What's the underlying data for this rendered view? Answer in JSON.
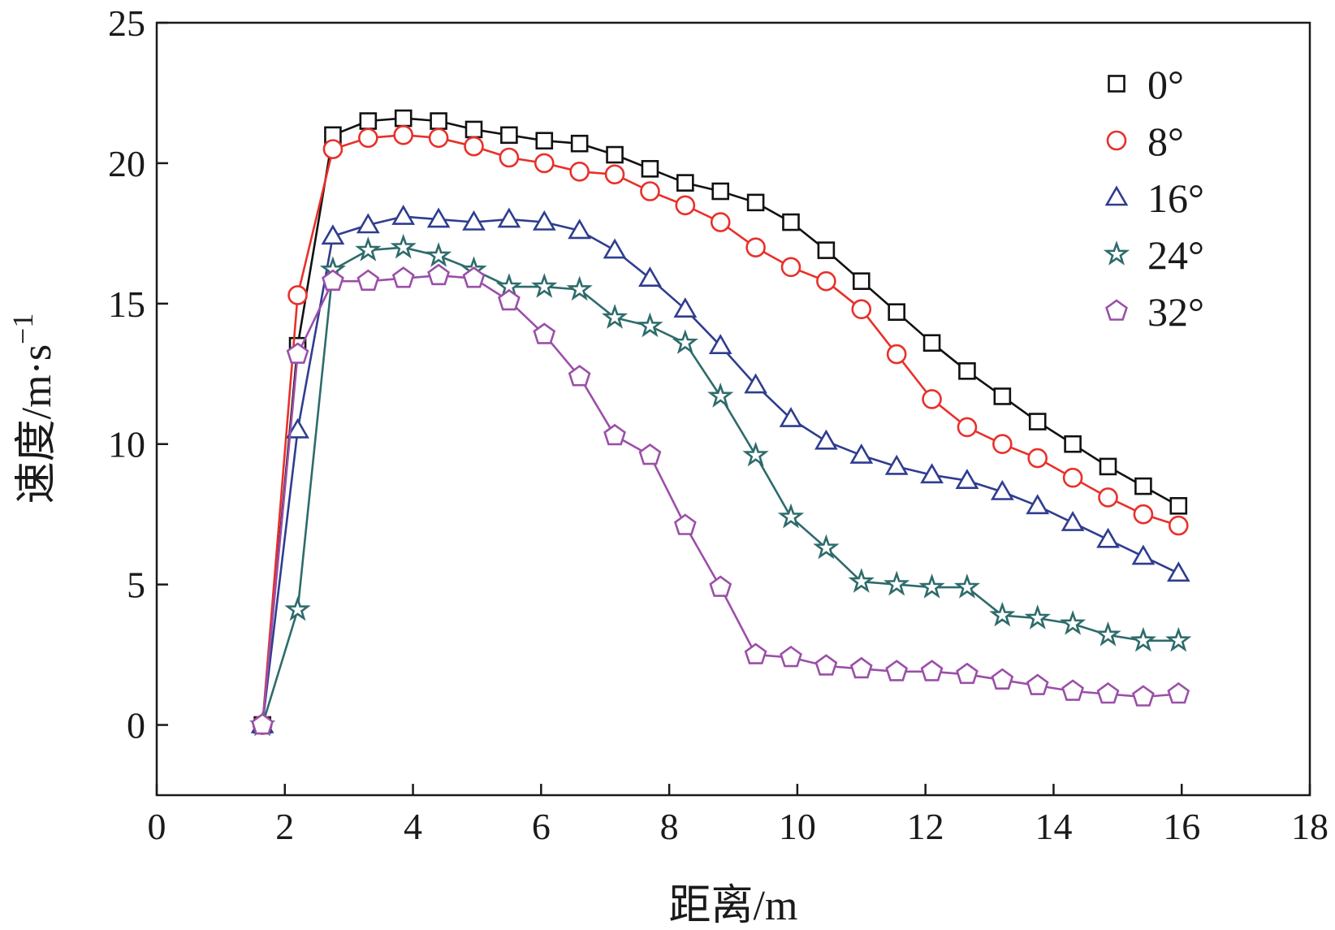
{
  "chart_data": {
    "type": "line",
    "xlabel": "距离/m",
    "ylabel": "速度/m·s",
    "ylabel_sup": "−1",
    "xlim": [
      0,
      18
    ],
    "ylim": [
      -2.5,
      25
    ],
    "xticks": [
      "0",
      "2",
      "4",
      "6",
      "8",
      "10",
      "12",
      "14",
      "16",
      "18"
    ],
    "yticks": [
      "0",
      "5",
      "10",
      "15",
      "20",
      "25"
    ],
    "grid": false,
    "legend_position": "top-right",
    "x": [
      1.65,
      2.2,
      2.75,
      3.3,
      3.85,
      4.4,
      4.95,
      5.5,
      6.05,
      6.6,
      7.15,
      7.7,
      8.25,
      8.8,
      9.35,
      9.9,
      10.45,
      11.0,
      11.55,
      12.1,
      12.65,
      13.2,
      13.75,
      14.3,
      14.85,
      15.4,
      15.95
    ],
    "series": [
      {
        "name": "0°",
        "color": "#111111",
        "marker": "square",
        "values": [
          0,
          13.5,
          21.0,
          21.5,
          21.6,
          21.5,
          21.2,
          21.0,
          20.8,
          20.7,
          20.3,
          19.8,
          19.3,
          19.0,
          18.6,
          17.9,
          16.9,
          15.8,
          14.7,
          13.6,
          12.6,
          11.7,
          10.8,
          10.0,
          9.2,
          8.5,
          7.8
        ]
      },
      {
        "name": "8°",
        "color": "#e8302a",
        "marker": "circle",
        "values": [
          0,
          15.3,
          20.5,
          20.9,
          21.0,
          20.9,
          20.6,
          20.2,
          20.0,
          19.7,
          19.6,
          19.0,
          18.5,
          17.9,
          17.0,
          16.3,
          15.8,
          14.8,
          13.2,
          11.6,
          10.6,
          10.0,
          9.5,
          8.8,
          8.1,
          7.5,
          7.1
        ]
      },
      {
        "name": "16°",
        "color": "#2f3d8f",
        "marker": "triangle",
        "values": [
          0,
          10.5,
          17.4,
          17.8,
          18.1,
          18.0,
          17.9,
          18.0,
          17.9,
          17.6,
          16.9,
          15.9,
          14.8,
          13.5,
          12.1,
          10.9,
          10.1,
          9.6,
          9.2,
          8.9,
          8.7,
          8.3,
          7.8,
          7.2,
          6.6,
          6.0,
          5.4
        ]
      },
      {
        "name": "24°",
        "color": "#2e6b6b",
        "marker": "star",
        "values": [
          0,
          4.1,
          16.2,
          16.9,
          17.0,
          16.7,
          16.2,
          15.6,
          15.6,
          15.5,
          14.5,
          14.2,
          13.6,
          11.7,
          9.6,
          7.4,
          6.3,
          5.1,
          5.0,
          4.9,
          4.9,
          3.9,
          3.8,
          3.6,
          3.2,
          3.0,
          3.0
        ]
      },
      {
        "name": "32°",
        "color": "#9b4fa8",
        "marker": "pentagon",
        "values": [
          0,
          13.2,
          15.8,
          15.8,
          15.9,
          16.0,
          15.9,
          15.1,
          13.9,
          12.4,
          10.3,
          9.6,
          7.1,
          4.9,
          2.5,
          2.4,
          2.1,
          2.0,
          1.9,
          1.9,
          1.8,
          1.6,
          1.4,
          1.2,
          1.1,
          1.0,
          1.1
        ]
      }
    ]
  }
}
